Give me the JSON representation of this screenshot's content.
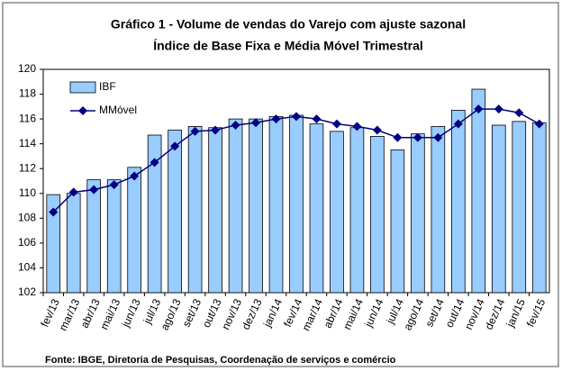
{
  "chart_data": {
    "type": "bar_line",
    "title": "Gráfico 1 - Volume de vendas do Varejo com ajuste sazonal",
    "subtitle": "Índice de Base Fixa e Média Móvel Trimestral",
    "source": "Fonte: IBGE, Diretoria de Pesquisas, Coordenação de serviços e comércio",
    "categories": [
      "fev/13",
      "mar/13",
      "abr/13",
      "mai/13",
      "jun/13",
      "jul/13",
      "ago/13",
      "set/13",
      "out/13",
      "nov/13",
      "dez/13",
      "jan/14",
      "fev/14",
      "mar/14",
      "abr/14",
      "mai/14",
      "jun/14",
      "jul/14",
      "ago/14",
      "set/14",
      "out/14",
      "nov/14",
      "dez/14",
      "jan/15",
      "fev/15"
    ],
    "series": [
      {
        "name": "IBF",
        "type": "bar",
        "color": "#99ccff",
        "values": [
          109.9,
          110.0,
          111.1,
          111.1,
          112.1,
          114.7,
          115.1,
          115.4,
          115.3,
          116.0,
          116.0,
          116.2,
          116.3,
          115.6,
          115.0,
          115.3,
          114.6,
          113.5,
          114.8,
          115.4,
          116.7,
          118.4,
          115.5,
          115.8,
          115.7
        ]
      },
      {
        "name": "MMóvel",
        "type": "line",
        "color": "#000080",
        "values": [
          108.5,
          110.1,
          110.3,
          110.7,
          111.4,
          112.5,
          113.8,
          115.0,
          115.1,
          115.5,
          115.7,
          116.0,
          116.2,
          116.0,
          115.6,
          115.4,
          115.1,
          114.5,
          114.5,
          114.5,
          115.6,
          116.8,
          116.8,
          116.5,
          115.6
        ]
      }
    ],
    "ylim": [
      102,
      120
    ],
    "yticks": [
      102,
      104,
      106,
      108,
      110,
      112,
      114,
      116,
      118,
      120
    ],
    "grid": false,
    "legend": "top-left"
  }
}
